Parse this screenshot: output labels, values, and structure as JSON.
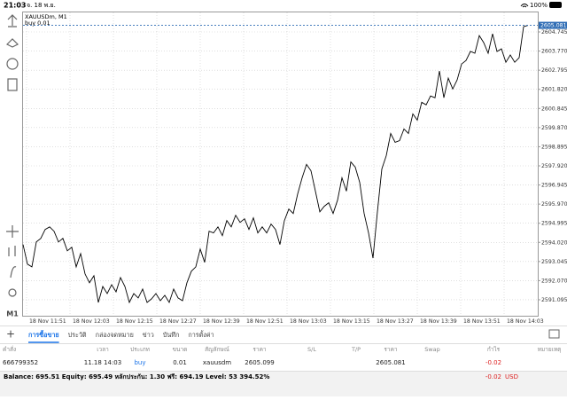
{
  "status_bar": {
    "time": "21:03",
    "date": "จ. 18 พ.ย.",
    "battery": "100%"
  },
  "toolbar": {
    "timeframe": "M1"
  },
  "chart_data": {
    "type": "line",
    "title": "XAUUSDm, M1",
    "annotation": "buy 0.01",
    "color": "#000000",
    "values": [
      2593.91,
      2592.91,
      2592.77,
      2594.04,
      2594.22,
      2594.68,
      2594.81,
      2594.59,
      2594.04,
      2594.22,
      2593.59,
      2593.77,
      2592.77,
      2593.45,
      2592.41,
      2591.96,
      2592.32,
      2590.96,
      2591.77,
      2591.41,
      2591.86,
      2591.5,
      2592.23,
      2591.77,
      2590.96,
      2591.41,
      2591.19,
      2591.64,
      2590.96,
      2591.14,
      2591.41,
      2591.05,
      2591.32,
      2590.96,
      2591.64,
      2591.19,
      2591.05,
      2591.96,
      2592.55,
      2592.77,
      2593.68,
      2593.0,
      2594.59,
      2594.5,
      2594.81,
      2594.36,
      2595.13,
      2594.81,
      2595.4,
      2595.04,
      2595.22,
      2594.68,
      2595.27,
      2594.5,
      2594.81,
      2594.5,
      2594.95,
      2594.68,
      2593.91,
      2595.13,
      2595.72,
      2595.49,
      2596.49,
      2597.31,
      2597.99,
      2597.67,
      2596.63,
      2595.58,
      2595.86,
      2596.04,
      2595.49,
      2596.17,
      2597.31,
      2596.63,
      2598.12,
      2597.85,
      2597.08,
      2595.49,
      2594.5,
      2593.22,
      2595.58,
      2597.76,
      2598.44,
      2599.57,
      2599.12,
      2599.21,
      2599.8,
      2599.57,
      2600.57,
      2600.25,
      2601.16,
      2601.03,
      2601.48,
      2601.39,
      2602.75,
      2601.39,
      2602.39,
      2601.84,
      2602.3,
      2603.11,
      2603.29,
      2603.75,
      2603.66,
      2604.56,
      2604.2,
      2603.66,
      2604.65,
      2603.75,
      2603.88,
      2603.2,
      2603.57,
      2603.2,
      2603.43,
      2605.01,
      2605.081
    ],
    "current_price": 2605.081,
    "current_price_color": "#2f6db5",
    "ylim": [
      2590.28,
      2605.74
    ],
    "yticks": [
      2604.745,
      {
        "value": 2603.77,
        "label": "2603.770"
      },
      2602.795,
      {
        "value": 2601.82,
        "label": "2601.820"
      },
      2600.845,
      {
        "value": 2599.87,
        "label": "2599.870"
      },
      2598.895,
      {
        "value": 2597.92,
        "label": "2597.920"
      },
      2596.945,
      {
        "value": 2595.97,
        "label": "2595.970"
      },
      2594.995,
      {
        "value": 2594.02,
        "label": "2594.020"
      },
      2593.045,
      {
        "value": 2592.07,
        "label": "2592.070"
      },
      2591.095
    ],
    "xlabels": [
      "18 Nov 11:51",
      "18 Nov 12:03",
      "18 Nov 12:15",
      "18 Nov 12:27",
      "18 Nov 12:39",
      "18 Nov 12:51",
      "18 Nov 13:03",
      "18 Nov 13:15",
      "18 Nov 13:27",
      "18 Nov 13:39",
      "18 Nov 13:51",
      "18 Nov 14:03"
    ],
    "grid": true
  },
  "tabs": {
    "items": [
      "การซื้อขาย",
      "ประวัติ",
      "กล่องจดหมาย",
      "ข่าว",
      "บันทึก",
      "การตั้งค่า"
    ],
    "active": 0
  },
  "table": {
    "columns": [
      "คำสั่ง",
      "เวลา",
      "ประเภท",
      "ขนาด",
      "สัญลักษณ์",
      "ราคา",
      "S/L",
      "T/P",
      "ราคา",
      "Swap",
      "กำไร",
      "หมายเหตุ"
    ],
    "rows": [
      {
        "order": "666799352",
        "time": "11.18 14:03",
        "type": "buy",
        "volume": "0.01",
        "symbol": "xauusdm",
        "open_price": "2605.099",
        "price": "2605.081",
        "profit": "-0.02"
      }
    ]
  },
  "footer": {
    "summary": "Balance: 695.51 Equity: 695.49 หลักประกัน: 1.30 ฟรี: 694.19 Level: 53 394.52%",
    "profit": "-0.02",
    "currency": "USD"
  }
}
